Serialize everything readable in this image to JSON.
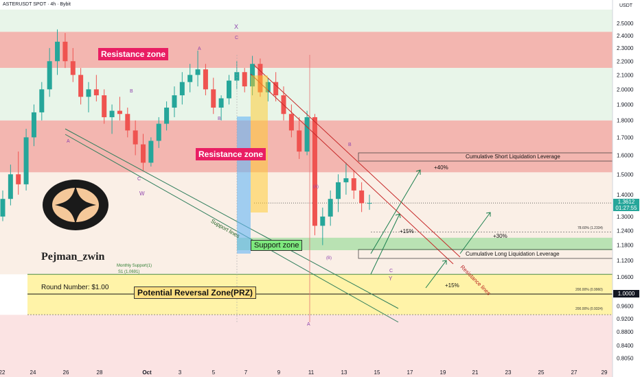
{
  "header": {
    "symbol": "ASTERUSDT SPOT · 4h · Bybit",
    "currency": "USDT"
  },
  "brand": {
    "name": "Pejman_zwin",
    "logo_icon": "four-point-star-logo-icon"
  },
  "colors": {
    "up": "#26a69a",
    "down": "#ef5350",
    "resistance": "#f4a6a6",
    "support": "#a5d6a7",
    "prz": "#fff59d",
    "label_red": "#e91e63",
    "label_green": "#66bb6a",
    "wave": "#8e44ad"
  },
  "price": {
    "current": "1.3612",
    "countdown": "01:27:55",
    "level_1": "1.0000"
  },
  "labels": {
    "resistance_top": "Resistance zone",
    "resistance_mid": "Resistance zone",
    "support": "Support zone",
    "prz": "Potential Reversal Zone(PRZ)",
    "round_number": "Round Number: $1.00",
    "monthly_support": "Monthly Support(1)",
    "s1": "S1 (1.0691)",
    "support_lines": "Support lines",
    "resistance_lines": "Resistance lines",
    "short_liq": "Cumulative Short Liquidation Leverage",
    "long_liq": "Cumulative Long Liquidation Leverage",
    "fib_786": "78.60% (1.2334)",
    "fib_200a": "200.00% (0.9960)",
    "fib_200b": "200.00% (0.9324)",
    "pct_40": "+40%",
    "pct_15a": "+15%",
    "pct_30": "+30%",
    "pct_15b": "+15%"
  },
  "waves": {
    "a1": "A",
    "b1": "B",
    "c1": "C",
    "w": "W",
    "a2": "A",
    "b2": "B",
    "c2": "C",
    "x": "X",
    "a3": "(A)",
    "b3": "(B)",
    "b4": "B",
    "c4": "C",
    "y": "Y",
    "a5": "A"
  },
  "chart_data": {
    "type": "candlestick",
    "y_scale": "log",
    "ylim": [
      0.78,
      2.62
    ],
    "y_ticks": [
      "2.5000",
      "2.4000",
      "2.3000",
      "2.2000",
      "2.1000",
      "2.0000",
      "1.9000",
      "1.8000",
      "1.7000",
      "1.6000",
      "1.5000",
      "1.4000",
      "1.3000",
      "1.2400",
      "1.1800",
      "1.1200",
      "1.0600",
      "1.0000",
      "0.9600",
      "0.9200",
      "0.8800",
      "0.8400",
      "0.8050"
    ],
    "y_tick_values": [
      2.5,
      2.4,
      2.3,
      2.2,
      2.1,
      2.0,
      1.9,
      1.8,
      1.7,
      1.6,
      1.5,
      1.4,
      1.3,
      1.24,
      1.18,
      1.12,
      1.06,
      1.0,
      0.96,
      0.92,
      0.88,
      0.84,
      0.805
    ],
    "x_ticks": [
      "22",
      "24",
      "26",
      "28",
      "Oct",
      "3",
      "5",
      "7",
      "9",
      "11",
      "13",
      "15",
      "17",
      "19",
      "21",
      "23",
      "25",
      "27",
      "29"
    ],
    "zones": [
      {
        "name": "Resistance zone",
        "from": 2.15,
        "to": 2.43
      },
      {
        "name": "Resistance zone",
        "from": 1.51,
        "to": 1.8
      },
      {
        "name": "Support zone",
        "from": 1.16,
        "to": 1.21
      },
      {
        "name": "Potential Reversal Zone(PRZ)",
        "from": 0.932,
        "to": 1.069
      }
    ],
    "levels": {
      "current": 1.3612,
      "round_number": 1.0,
      "s1": 1.0691,
      "fib_786": 1.2334,
      "fib_200a": 0.996,
      "fib_200b": 0.9324
    },
    "candles_ohlc": [
      [
        1.3,
        1.42,
        1.28,
        1.38
      ],
      [
        1.38,
        1.55,
        1.35,
        1.5
      ],
      [
        1.5,
        1.62,
        1.4,
        1.45
      ],
      [
        1.45,
        1.75,
        1.42,
        1.7
      ],
      [
        1.7,
        1.9,
        1.65,
        1.85
      ],
      [
        1.85,
        2.05,
        1.8,
        2.0
      ],
      [
        2.0,
        2.3,
        1.95,
        2.2
      ],
      [
        2.2,
        2.45,
        2.1,
        2.35
      ],
      [
        2.35,
        2.42,
        2.15,
        2.2
      ],
      [
        2.2,
        2.3,
        2.05,
        2.1
      ],
      [
        2.1,
        2.15,
        1.9,
        1.95
      ],
      [
        1.95,
        2.05,
        1.85,
        2.0
      ],
      [
        2.0,
        2.1,
        1.92,
        1.96
      ],
      [
        1.96,
        2.0,
        1.78,
        1.82
      ],
      [
        1.82,
        1.9,
        1.72,
        1.86
      ],
      [
        1.86,
        1.95,
        1.8,
        1.84
      ],
      [
        1.84,
        1.88,
        1.7,
        1.74
      ],
      [
        1.74,
        1.8,
        1.6,
        1.66
      ],
      [
        1.66,
        1.72,
        1.52,
        1.56
      ],
      [
        1.56,
        1.7,
        1.54,
        1.68
      ],
      [
        1.68,
        1.82,
        1.64,
        1.78
      ],
      [
        1.78,
        1.92,
        1.74,
        1.88
      ],
      [
        1.88,
        2.02,
        1.82,
        1.96
      ],
      [
        1.96,
        2.12,
        1.9,
        2.05
      ],
      [
        2.05,
        2.18,
        1.98,
        2.1
      ],
      [
        2.1,
        2.28,
        2.02,
        2.14
      ],
      [
        2.14,
        2.18,
        1.96,
        2.0
      ],
      [
        2.0,
        2.08,
        1.84,
        1.88
      ],
      [
        1.88,
        1.96,
        1.8,
        1.94
      ],
      [
        1.94,
        2.1,
        1.9,
        2.06
      ],
      [
        2.06,
        2.2,
        2.0,
        2.12
      ],
      [
        2.12,
        2.15,
        1.98,
        2.02
      ],
      [
        2.02,
        2.24,
        1.96,
        2.18
      ],
      [
        2.18,
        2.22,
        1.95,
        1.98
      ],
      [
        1.98,
        2.08,
        1.92,
        2.05
      ],
      [
        2.05,
        2.12,
        1.92,
        1.96
      ],
      [
        1.96,
        2.02,
        1.8,
        1.84
      ],
      [
        1.84,
        1.9,
        1.7,
        1.74
      ],
      [
        1.74,
        1.82,
        1.58,
        1.62
      ],
      [
        1.62,
        1.86,
        1.6,
        1.82
      ],
      [
        1.82,
        1.84,
        1.22,
        1.26
      ],
      [
        1.26,
        1.34,
        1.18,
        1.3
      ],
      [
        1.3,
        1.42,
        1.26,
        1.38
      ],
      [
        1.38,
        1.5,
        1.32,
        1.46
      ],
      [
        1.46,
        1.56,
        1.4,
        1.48
      ],
      [
        1.48,
        1.52,
        1.38,
        1.42
      ],
      [
        1.42,
        1.46,
        1.32,
        1.36
      ],
      [
        1.36,
        1.4,
        1.33,
        1.3612
      ]
    ]
  }
}
